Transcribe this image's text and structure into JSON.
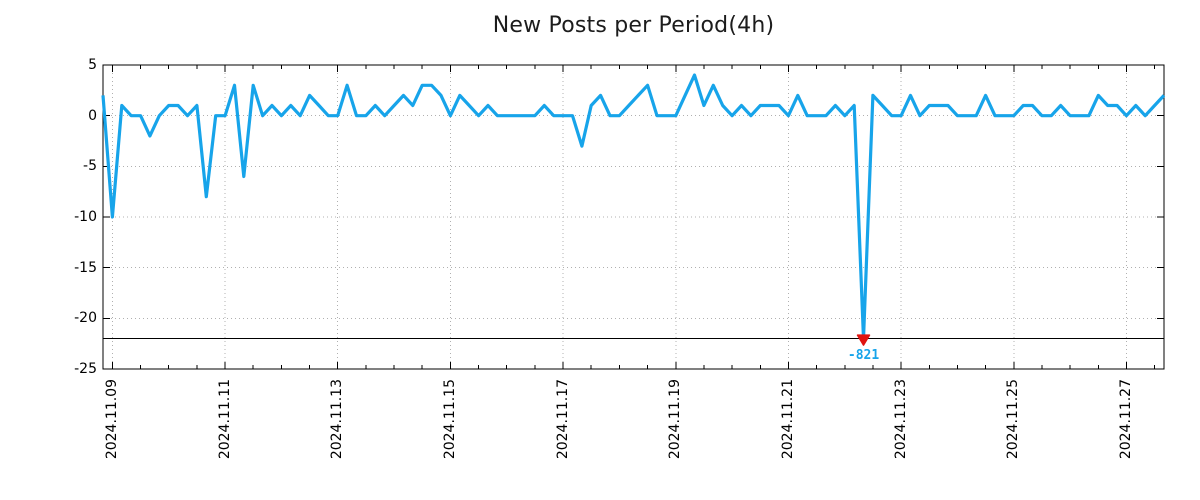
{
  "chart_data": {
    "type": "line",
    "title": "New Posts per Period(4h)",
    "xlabel": "",
    "ylabel": "",
    "legend": "none",
    "grid": "dotted",
    "ylim": [
      -25,
      5
    ],
    "y_ticks": [
      5,
      0,
      -5,
      -10,
      -15,
      -20,
      -25
    ],
    "x_tick_labels": [
      "2024.11.09",
      "2024.11.11",
      "2024.11.13",
      "2024.11.15",
      "2024.11.17",
      "2024.11.19",
      "2024.11.21",
      "2024.11.23",
      "2024.11.25",
      "2024.11.27"
    ],
    "x_tick_indices": [
      1,
      13,
      25,
      37,
      49,
      61,
      73,
      85,
      97,
      109
    ],
    "x_minor_tick_every": 3,
    "period_per_point": "4h",
    "values": [
      2,
      -10,
      1,
      0,
      0,
      -2,
      0,
      1,
      1,
      0,
      1,
      -8,
      0,
      0,
      3,
      -6,
      3,
      0,
      1,
      0,
      1,
      0,
      2,
      1,
      0,
      0,
      3,
      0,
      0,
      1,
      0,
      1,
      2,
      1,
      3,
      3,
      2,
      0,
      2,
      1,
      0,
      1,
      0,
      0,
      0,
      0,
      0,
      1,
      0,
      0,
      0,
      -3,
      1,
      2,
      0,
      0,
      1,
      2,
      3,
      0,
      0,
      0,
      2,
      4,
      1,
      3,
      1,
      0,
      1,
      0,
      1,
      1,
      1,
      0,
      2,
      0,
      0,
      0,
      1,
      0,
      1,
      -821,
      2,
      1,
      0,
      0,
      2,
      0,
      1,
      1,
      1,
      0,
      0,
      0,
      2,
      0,
      0,
      0,
      1,
      1,
      0,
      0,
      1,
      0,
      0,
      0,
      2,
      1,
      1,
      0,
      1,
      0,
      1,
      2
    ],
    "clip_floor": -22,
    "threshold_line": {
      "value": -22,
      "color": "#000000"
    },
    "annotation": {
      "label": "-821",
      "index": 81,
      "value": -821,
      "marker": "down-triangle",
      "marker_color": "#e01410",
      "text_color": "#17a4ea"
    },
    "line_color": "#17a4ea",
    "grid_color": "#b0b0b0",
    "axis_color": "#000000",
    "background": "#ffffff",
    "title_color": "#1c1c1c"
  }
}
